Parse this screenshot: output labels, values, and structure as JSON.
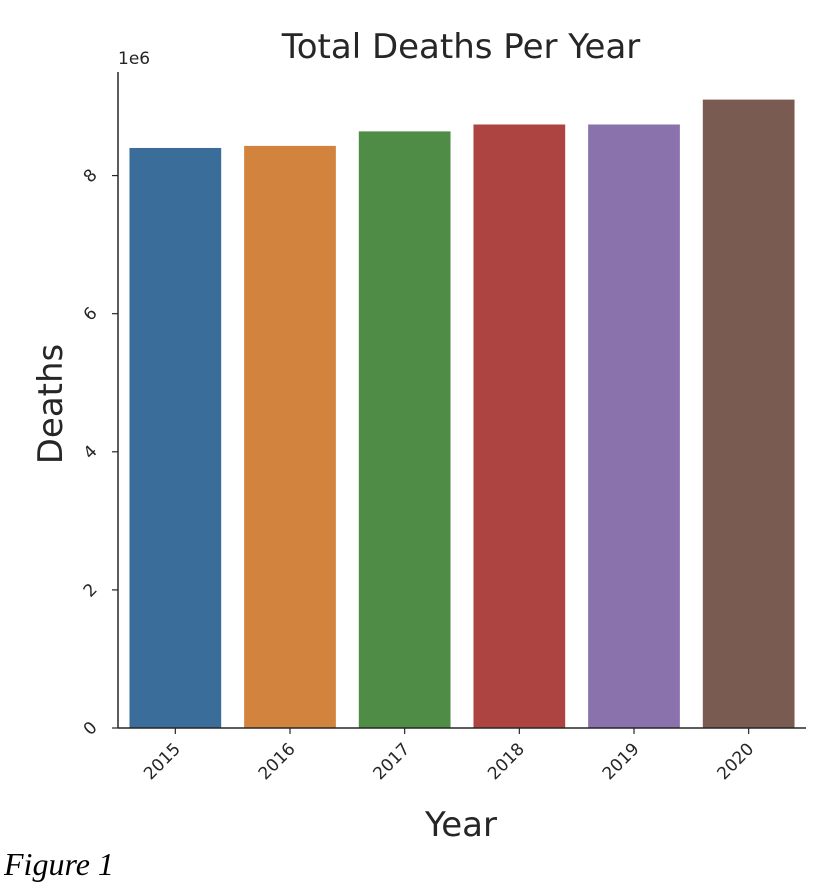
{
  "chart_data": {
    "type": "bar",
    "title": "Total Deaths Per Year",
    "xlabel": "Year",
    "ylabel": "Deaths",
    "y_offset_label": "1e6",
    "categories": [
      "2015",
      "2016",
      "2017",
      "2018",
      "2019",
      "2020"
    ],
    "values": [
      8400000,
      8430000,
      8640000,
      8740000,
      8740000,
      9100000
    ],
    "colors": [
      "#3a6d9a",
      "#d2843e",
      "#4f8c45",
      "#ae4442",
      "#8a72ad",
      "#7a5b51"
    ],
    "ylim": [
      0,
      9500000
    ],
    "yticks": [
      0,
      2000000,
      4000000,
      6000000,
      8000000
    ],
    "ytick_labels": [
      "0",
      "2",
      "4",
      "6",
      "8"
    ],
    "grid": false,
    "legend": "none"
  },
  "caption": "Figure 1"
}
